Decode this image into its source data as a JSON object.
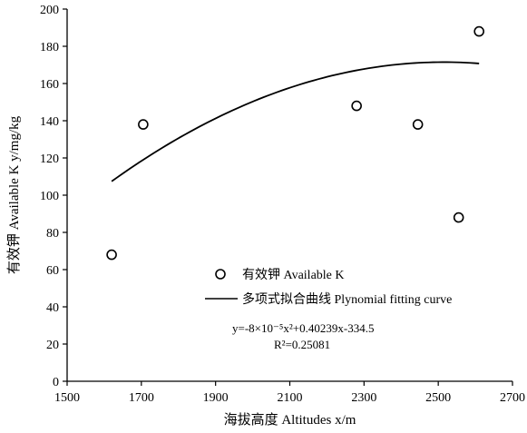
{
  "chart_data": {
    "type": "scatter",
    "xlabel": "海拔高度 Altitudes  x/m",
    "ylabel": "有效钾 Available K y/mg/kg",
    "xlim": [
      1500,
      2700
    ],
    "ylim": [
      0,
      200
    ],
    "xticks": [
      "1500",
      "1700",
      "1900",
      "2100",
      "2300",
      "2500",
      "2700"
    ],
    "yticks": [
      "0",
      "20",
      "40",
      "60",
      "80",
      "100",
      "120",
      "140",
      "160",
      "180",
      "200"
    ],
    "series": [
      {
        "name": "有效钾 Available K",
        "kind": "scatter",
        "marker": "open-circle",
        "x": [
          1620,
          1705,
          2280,
          2445,
          2555,
          2610
        ],
        "y": [
          68,
          138,
          148,
          138,
          88,
          188
        ]
      },
      {
        "name": "多项式拟合曲线  Plynomial fitting curve",
        "kind": "polynomial-fit",
        "coefficients": {
          "a": -8e-05,
          "b": 0.40239,
          "c": -334.5
        },
        "x_range": [
          1620,
          2610
        ]
      }
    ],
    "annotations": {
      "equation": "y=-8×10⁻⁵x²+0.40239x-334.5",
      "r_squared": "R²=0.25081"
    },
    "grid": false,
    "legend_position": "center"
  }
}
